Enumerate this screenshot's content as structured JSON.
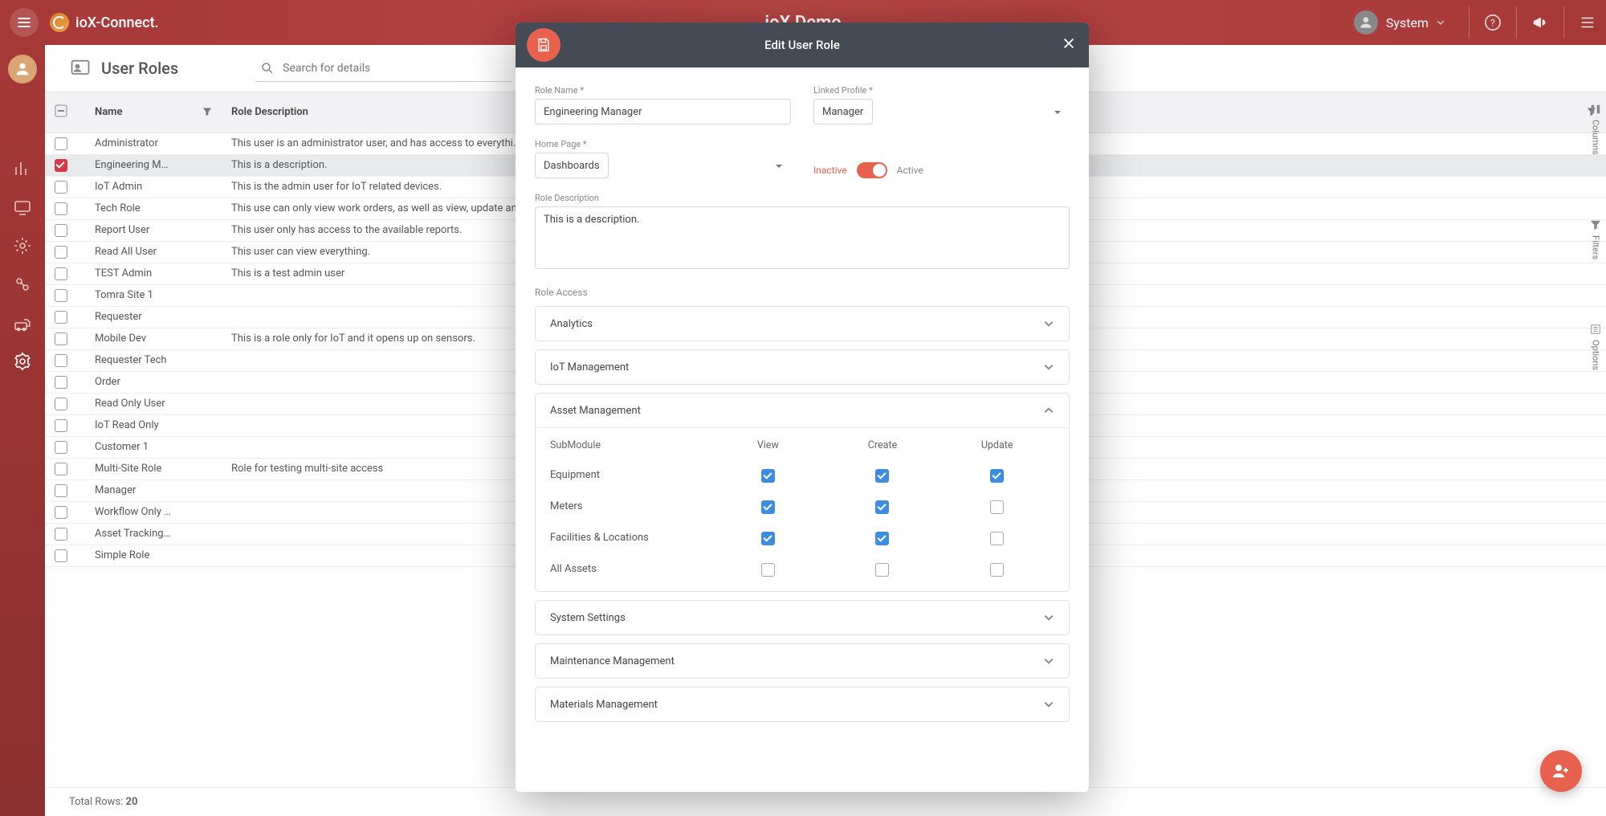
{
  "header": {
    "brand": "ioX-Connect.",
    "app_title": "ioX Demo",
    "user_menu_label": "System"
  },
  "page": {
    "title": "User Roles",
    "search_placeholder": "Search for details",
    "footer_label": "Total Rows:",
    "footer_count": "20"
  },
  "right_rail": [
    "Columns",
    "Filters",
    "Options"
  ],
  "columns": [
    "Name",
    "Role Description"
  ],
  "rows": [
    {
      "name": "Administrator",
      "desc": "This user is an administrator user, and has access to everythi…",
      "selected": false
    },
    {
      "name": "Engineering M…",
      "desc": "This is a description.",
      "selected": true
    },
    {
      "name": "IoT Admin",
      "desc": "This is the admin user for IoT related devices.",
      "selected": false
    },
    {
      "name": "Tech Role",
      "desc": "This use can only view work orders, as well as view, update an…",
      "selected": false
    },
    {
      "name": "Report User",
      "desc": "This user only has access to the available reports.",
      "selected": false
    },
    {
      "name": "Read All User",
      "desc": "This user can view everything.",
      "selected": false
    },
    {
      "name": "TEST Admin",
      "desc": "This is a test admin user",
      "selected": false
    },
    {
      "name": "Tomra Site 1",
      "desc": "",
      "selected": false
    },
    {
      "name": "Requester",
      "desc": "",
      "selected": false
    },
    {
      "name": "Mobile Dev",
      "desc": "This is a role only for IoT and it opens up on sensors.",
      "selected": false
    },
    {
      "name": "Requester Tech",
      "desc": "",
      "selected": false
    },
    {
      "name": "Order",
      "desc": "",
      "selected": false
    },
    {
      "name": "Read Only User",
      "desc": "",
      "selected": false
    },
    {
      "name": "IoT Read Only",
      "desc": "",
      "selected": false
    },
    {
      "name": "Customer 1",
      "desc": "",
      "selected": false
    },
    {
      "name": "Multi-Site Role",
      "desc": "Role for testing multi-site access",
      "selected": false
    },
    {
      "name": "Manager",
      "desc": "",
      "selected": false
    },
    {
      "name": "Workflow Only …",
      "desc": "",
      "selected": false
    },
    {
      "name": "Asset Tracking…",
      "desc": "",
      "selected": false
    },
    {
      "name": "Simple Role",
      "desc": "",
      "selected": false
    }
  ],
  "modal": {
    "title": "Edit User Role",
    "role_name_label": "Role Name *",
    "role_name_value": "Engineering Manager",
    "linked_profile_label": "Linked Profile *",
    "linked_profile_value": "Manager",
    "home_page_label": "Home Page *",
    "home_page_value": "Dashboards",
    "inactive_label": "Inactive",
    "active_label": "Active",
    "description_label": "Role Description",
    "description_value": "This is a description.",
    "role_access_label": "Role Access",
    "sections": [
      {
        "title": "Analytics",
        "open": false
      },
      {
        "title": "IoT Management",
        "open": false
      },
      {
        "title": "Asset Management",
        "open": true
      },
      {
        "title": "System Settings",
        "open": false
      },
      {
        "title": "Maintenance Management",
        "open": false
      },
      {
        "title": "Materials Management",
        "open": false
      }
    ],
    "perm_headers": [
      "SubModule",
      "View",
      "Create",
      "Update"
    ],
    "perms": [
      {
        "name": "Equipment",
        "view": true,
        "create": true,
        "update": true
      },
      {
        "name": "Meters",
        "view": true,
        "create": true,
        "update": false
      },
      {
        "name": "Facilities & Locations",
        "view": true,
        "create": true,
        "update": false
      },
      {
        "name": "All Assets",
        "view": false,
        "create": false,
        "update": false
      }
    ]
  },
  "colors": {
    "brand_red": "#a63838",
    "accent": "#e8614f",
    "check_red": "#d53848",
    "check_blue": "#3c8de0",
    "header_gray": "#444b55"
  }
}
